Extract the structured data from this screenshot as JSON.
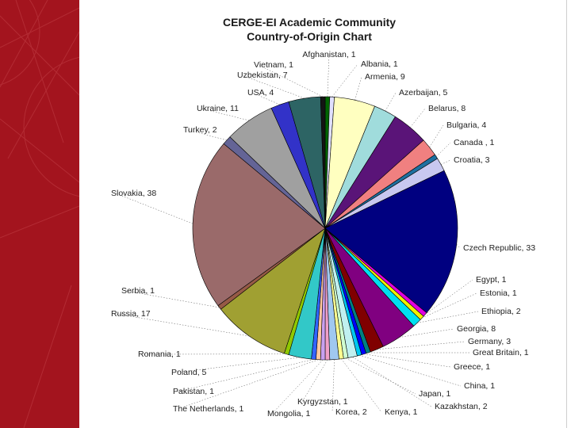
{
  "chart_data": {
    "type": "pie",
    "title": "CERGE-EI Academic Community",
    "subtitle": "Country-of-Origin Chart",
    "slices": [
      {
        "label": "Afghanistan, 1",
        "country": "Afghanistan",
        "value": 1,
        "color": "#006400"
      },
      {
        "label": "Albania, 1",
        "country": "Albania",
        "value": 1,
        "color": "#e0e0ff"
      },
      {
        "label": "Armenia, 9",
        "country": "Armenia",
        "value": 9,
        "color": "#ffffc0"
      },
      {
        "label": "Azerbaijan, 5",
        "country": "Azerbaijan",
        "value": 5,
        "color": "#a0dcdc"
      },
      {
        "label": "Belarus, 8",
        "country": "Belarus",
        "value": 8,
        "color": "#5a1478"
      },
      {
        "label": "Bulgaria, 4",
        "country": "Bulgaria",
        "value": 4,
        "color": "#f08080"
      },
      {
        "label": "Canada , 1",
        "country": "Canada",
        "value": 1,
        "color": "#1e70a0"
      },
      {
        "label": "Croatia, 3",
        "country": "Croatia",
        "value": 3,
        "color": "#c8c8f0"
      },
      {
        "label": "Czech Republic, 33",
        "country": "Czech Republic",
        "value": 33,
        "color": "#000080"
      },
      {
        "label": "Egypt, 1",
        "country": "Egypt",
        "value": 1,
        "color": "#e000e0"
      },
      {
        "label": "Estonia, 1",
        "country": "Estonia",
        "value": 1,
        "color": "#f0f000"
      },
      {
        "label": "Ethiopia, 2",
        "country": "Ethiopia",
        "value": 2,
        "color": "#00e0f0"
      },
      {
        "label": "Georgia, 8",
        "country": "Georgia",
        "value": 8,
        "color": "#800080"
      },
      {
        "label": "Germany, 3",
        "country": "Germany",
        "value": 3,
        "color": "#800000"
      },
      {
        "label": "Great Britain, 1",
        "country": "Great Britain",
        "value": 1,
        "color": "#008080"
      },
      {
        "label": "Greece, 1",
        "country": "Greece",
        "value": 1,
        "color": "#0000ff"
      },
      {
        "label": "China, 1",
        "country": "China",
        "value": 1,
        "color": "#00c8f0"
      },
      {
        "label": "Kazakhstan, 2",
        "country": "Kazakhstan",
        "value": 2,
        "color": "#c0f0f0"
      },
      {
        "label": "Japan, 1",
        "country": "Japan",
        "value": 1,
        "color": "#d0ffd0"
      },
      {
        "label": "Kenya, 1",
        "country": "Kenya",
        "value": 1,
        "color": "#ffff90"
      },
      {
        "label": "Korea, 2",
        "country": "Korea",
        "value": 2,
        "color": "#a0c8f0"
      },
      {
        "label": "Kyrgyzstan, 1",
        "country": "Kyrgyzstan",
        "value": 1,
        "color": "#f0a0c8"
      },
      {
        "label": "Mongolia, 1",
        "country": "Mongolia",
        "value": 1,
        "color": "#c8a0f0"
      },
      {
        "label": "The Netherlands, 1",
        "country": "The Netherlands",
        "value": 1,
        "color": "#ffc8a0"
      },
      {
        "label": "Pakistan, 1",
        "country": "Pakistan",
        "value": 1,
        "color": "#3264ff"
      },
      {
        "label": "Poland, 5",
        "country": "Poland",
        "value": 5,
        "color": "#32c8c8"
      },
      {
        "label": "Romania, 1",
        "country": "Romania",
        "value": 1,
        "color": "#90c800"
      },
      {
        "label": "Russia, 17",
        "country": "Russia",
        "value": 17,
        "color": "#a0a032"
      },
      {
        "label": "Serbia, 1",
        "country": "Serbia",
        "value": 1,
        "color": "#965a46"
      },
      {
        "label": "Slovakia, 38",
        "country": "Slovakia",
        "value": 38,
        "color": "#9a6a6a"
      },
      {
        "label": "Turkey, 2",
        "country": "Turkey",
        "value": 2,
        "color": "#646496"
      },
      {
        "label": "Ukraine, 11",
        "country": "Ukraine",
        "value": 11,
        "color": "#a0a0a0"
      },
      {
        "label": "USA, 4",
        "country": "USA",
        "value": 4,
        "color": "#3232c8"
      },
      {
        "label": "Uzbekistan, 7",
        "country": "Uzbekistan",
        "value": 7,
        "color": "#2d6464"
      },
      {
        "label": "Vietnam, 1",
        "country": "Vietnam",
        "value": 1,
        "color": "#141414"
      }
    ]
  }
}
